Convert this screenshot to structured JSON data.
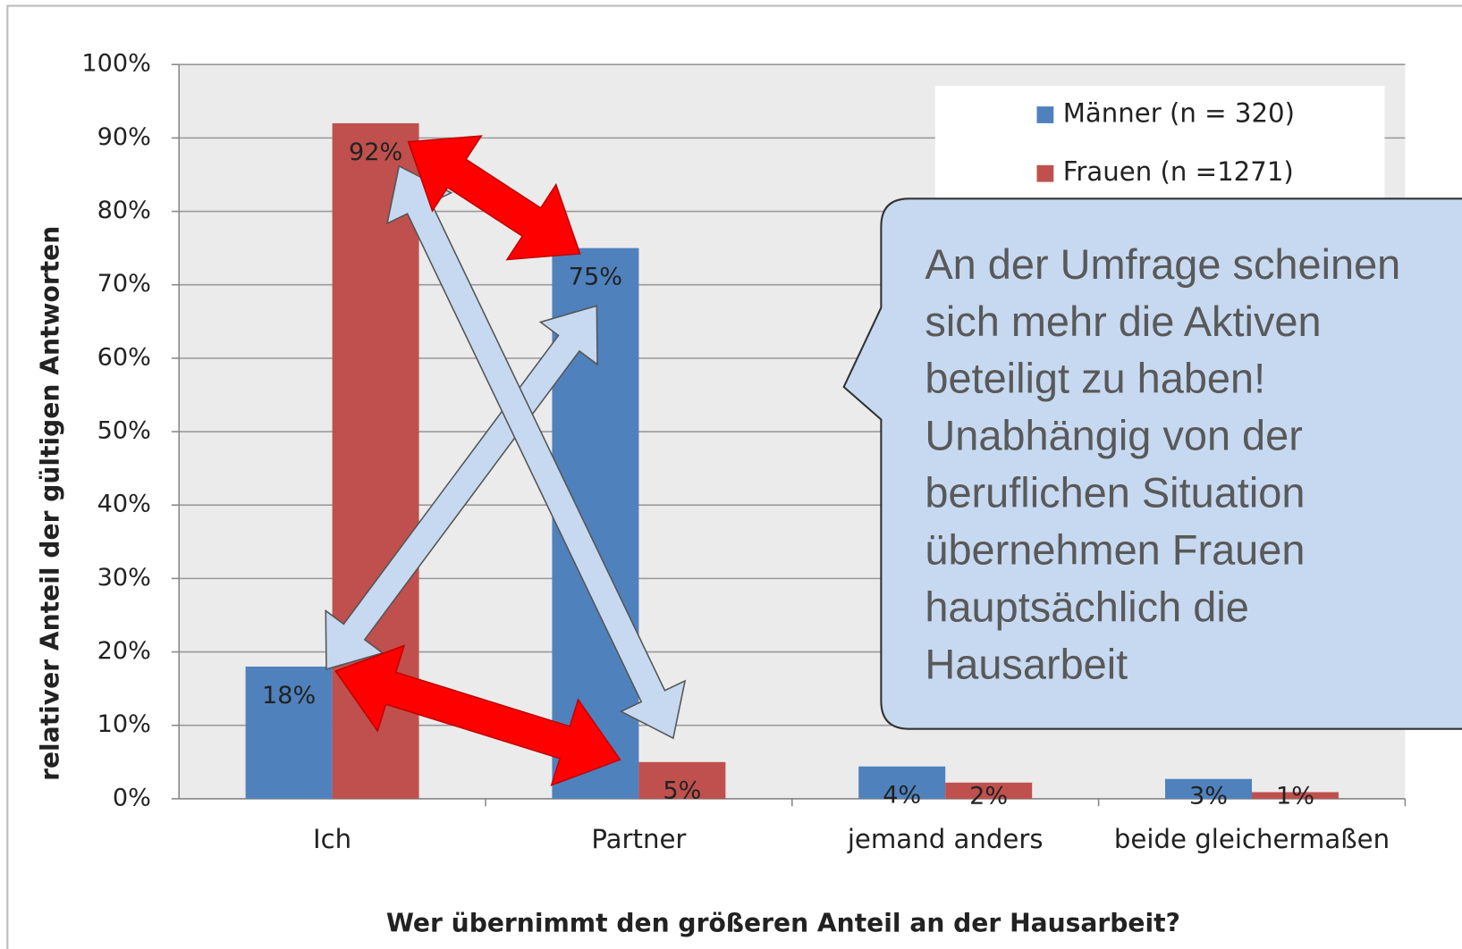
{
  "chart_data": {
    "type": "bar",
    "categories": [
      "Ich",
      "Partner",
      "jemand anders",
      "beide gleichermaßen"
    ],
    "series": [
      {
        "name": "Männer (n = 320)",
        "color": "#4f81bd",
        "values": [
          18,
          75,
          4.4,
          2.7
        ],
        "value_labels": [
          "18%",
          "75%",
          "4%",
          "3%"
        ]
      },
      {
        "name": "Frauen (n =1271)",
        "color": "#c0504d",
        "values": [
          92,
          5,
          2.2,
          0.9
        ],
        "value_labels": [
          "92%",
          "5%",
          "2%",
          "1%"
        ]
      }
    ],
    "ylim": [
      0,
      100
    ],
    "yticks": [
      {
        "value": 0,
        "label": "0%"
      },
      {
        "value": 10,
        "label": "10%"
      },
      {
        "value": 20,
        "label": "20%"
      },
      {
        "value": 30,
        "label": "30%"
      },
      {
        "value": 40,
        "label": "40%"
      },
      {
        "value": 50,
        "label": "50%"
      },
      {
        "value": 60,
        "label": "60%"
      },
      {
        "value": 70,
        "label": "70%"
      },
      {
        "value": 80,
        "label": "80%"
      },
      {
        "value": 90,
        "label": "90%"
      },
      {
        "value": 100,
        "label": "100%"
      }
    ],
    "grid": true,
    "legend": "upper right",
    "xlabel": "Wer übernimmt den größeren Anteil an der Hausarbeit?",
    "ylabel": "relativer Anteil der gültigen Antworten",
    "annotation": [
      "An der Umfrage scheinen",
      "sich mehr die Aktiven",
      "beteiligt zu haben!",
      "Unabhängig von der",
      "beruflichen Situation",
      "übernehmen Frauen",
      "hauptsächlich die",
      "Hausarbeit"
    ]
  }
}
